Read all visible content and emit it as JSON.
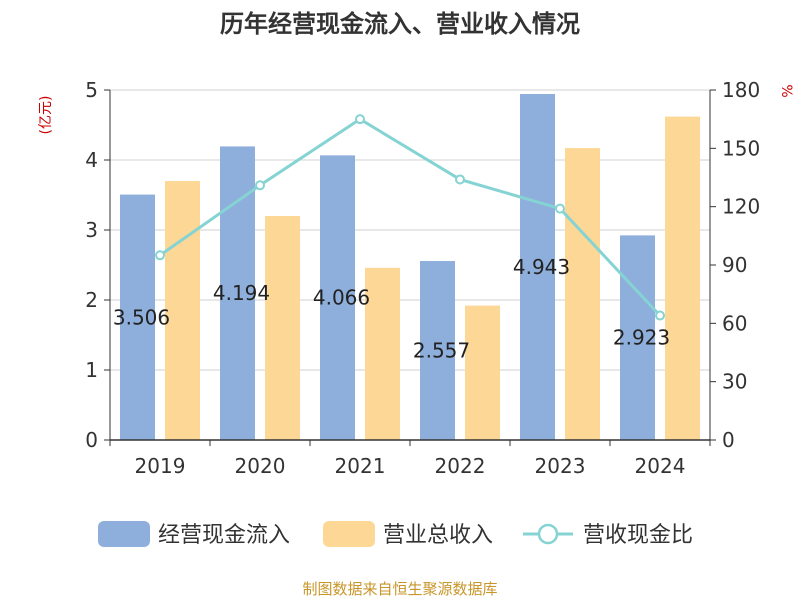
{
  "chart_data": {
    "type": "bar",
    "title": "历年经营现金流入、营业收入情况",
    "categories": [
      "2019",
      "2020",
      "2021",
      "2022",
      "2023",
      "2024"
    ],
    "series": [
      {
        "name": "经营现金流入",
        "type": "bar",
        "axis": "left",
        "color": "#8eaedc",
        "values": [
          3.506,
          4.194,
          4.066,
          2.557,
          4.943,
          2.923
        ]
      },
      {
        "name": "营业总收入",
        "type": "bar",
        "axis": "left",
        "color": "#fdd795",
        "values": [
          3.7,
          3.2,
          2.46,
          1.92,
          4.17,
          4.62
        ]
      },
      {
        "name": "营收现金比",
        "type": "line",
        "axis": "right",
        "color": "#85d3d3",
        "values": [
          95,
          131,
          165,
          134,
          119,
          64
        ]
      }
    ],
    "data_labels": [
      "3.506",
      "4.194",
      "4.066",
      "2.557",
      "4.943",
      "2.923"
    ],
    "y_left": {
      "unit": "(亿元)",
      "min": 0,
      "max": 5,
      "ticks": [
        "0",
        "1",
        "2",
        "3",
        "4",
        "5"
      ]
    },
    "y_right": {
      "unit": "%",
      "min": 0,
      "max": 180,
      "ticks": [
        "0",
        "30",
        "60",
        "90",
        "120",
        "150",
        "180"
      ]
    },
    "grid": true,
    "legend_position": "bottom",
    "source": "制图数据来自恒生聚源数据库"
  }
}
